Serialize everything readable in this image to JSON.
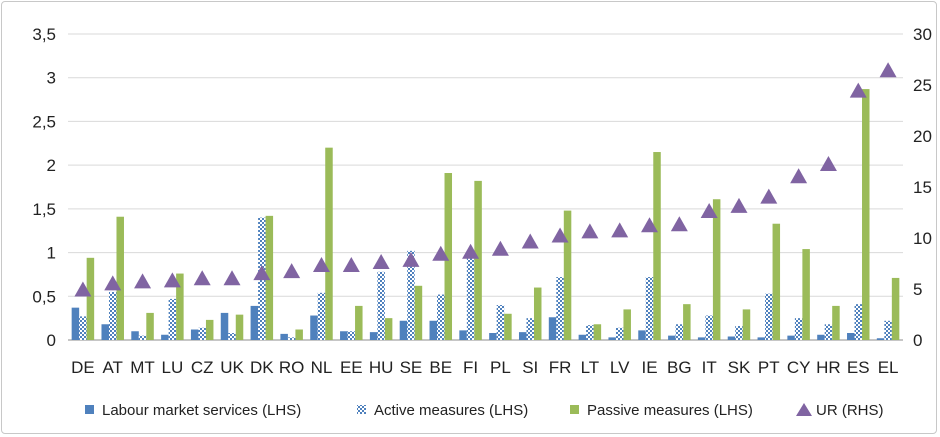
{
  "chart_data": {
    "type": "bar",
    "categories": [
      "DE",
      "AT",
      "MT",
      "LU",
      "CZ",
      "UK",
      "DK",
      "RO",
      "NL",
      "EE",
      "HU",
      "SE",
      "BE",
      "FI",
      "PL",
      "SI",
      "FR",
      "LT",
      "LV",
      "IE",
      "BG",
      "IT",
      "SK",
      "PT",
      "CY",
      "HR",
      "ES",
      "EL"
    ],
    "series": [
      {
        "name": "Labour market services (LHS)",
        "axis": "left",
        "kind": "bar",
        "style": "solid",
        "color": "#4f81bd",
        "values": [
          0.37,
          0.18,
          0.1,
          0.06,
          0.12,
          0.31,
          0.39,
          0.07,
          0.28,
          0.1,
          0.09,
          0.22,
          0.22,
          0.11,
          0.08,
          0.09,
          0.26,
          0.06,
          0.03,
          0.11,
          0.05,
          0.03,
          0.04,
          0.03,
          0.05,
          0.06,
          0.08,
          0.02
        ]
      },
      {
        "name": "Active measures (LHS)",
        "axis": "left",
        "kind": "bar",
        "style": "checkered",
        "color": "#4f81bd",
        "values": [
          0.27,
          0.55,
          0.05,
          0.47,
          0.14,
          0.08,
          1.4,
          0.03,
          0.54,
          0.1,
          0.78,
          1.02,
          0.52,
          0.96,
          0.4,
          0.25,
          0.72,
          0.17,
          0.14,
          0.72,
          0.18,
          0.28,
          0.16,
          0.53,
          0.25,
          0.18,
          0.41,
          0.22
        ]
      },
      {
        "name": "Passive measures (LHS)",
        "axis": "left",
        "kind": "bar",
        "style": "solid",
        "color": "#9bbb59",
        "values": [
          0.94,
          1.41,
          0.31,
          0.76,
          0.23,
          0.29,
          1.42,
          0.12,
          2.2,
          0.39,
          0.25,
          0.62,
          1.91,
          1.82,
          0.3,
          0.6,
          1.48,
          0.18,
          0.35,
          2.15,
          0.41,
          1.61,
          0.35,
          1.33,
          1.04,
          0.39,
          2.87,
          0.71
        ]
      },
      {
        "name": "UR (RHS)",
        "axis": "right",
        "kind": "marker",
        "marker": "triangle",
        "color": "#8064a2",
        "values": [
          5.0,
          5.6,
          5.8,
          5.9,
          6.1,
          6.1,
          6.6,
          6.8,
          7.4,
          7.4,
          7.7,
          7.9,
          8.5,
          8.7,
          9.0,
          9.7,
          10.3,
          10.7,
          10.8,
          11.3,
          11.4,
          12.7,
          13.2,
          14.1,
          16.1,
          17.3,
          24.5,
          26.5
        ]
      }
    ],
    "yaxis_left": {
      "min": 0,
      "max": 3.5,
      "ticks": [
        "0",
        "0,5",
        "1",
        "1,5",
        "2",
        "2,5",
        "3",
        "3,5"
      ]
    },
    "yaxis_right": {
      "min": 0,
      "max": 30,
      "ticks": [
        "0",
        "5",
        "10",
        "15",
        "20",
        "25",
        "30"
      ]
    },
    "grid": true,
    "legend_position": "bottom",
    "title": "",
    "xlabel": "",
    "ylabel": ""
  }
}
